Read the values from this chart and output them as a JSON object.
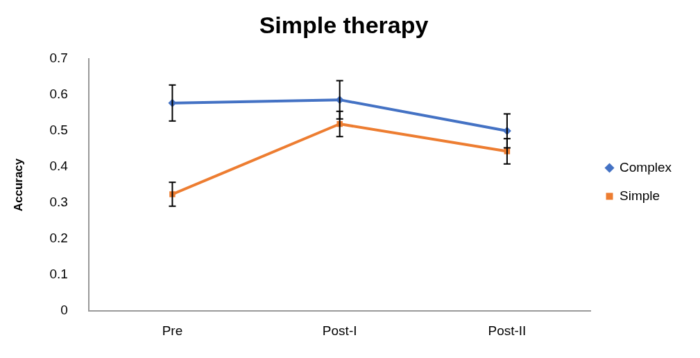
{
  "chart_data": {
    "type": "line",
    "title": "Simple therapy",
    "ylabel": "Accuracy",
    "categories": [
      "Pre",
      "Post-I",
      "Post-II"
    ],
    "ylim": [
      0,
      0.7
    ],
    "yticks": [
      0,
      0.1,
      0.2,
      0.3,
      0.4,
      0.5,
      0.6,
      0.7
    ],
    "grid": false,
    "legend": "right",
    "line_style": "solid",
    "series": [
      {
        "name": "Complex",
        "color": "#4472c4",
        "marker": "diamond",
        "values": [
          0.577,
          0.586,
          0.5
        ],
        "errors": [
          0.05,
          0.053,
          0.047
        ]
      },
      {
        "name": "Simple",
        "color": "#ed7d31",
        "marker": "square",
        "values": [
          0.324,
          0.519,
          0.443
        ],
        "errors": [
          0.033,
          0.035,
          0.035
        ]
      }
    ]
  }
}
